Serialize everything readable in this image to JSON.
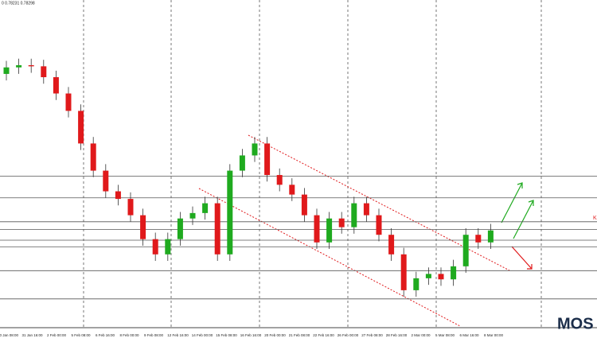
{
  "chart_data": {
    "type": "candlestick",
    "header": "0 0.78231 0.78298",
    "logo": "MOS",
    "right_marker": "K",
    "ylim": [
      0.76,
      0.79
    ],
    "up_color": "#1faa1f",
    "down_color": "#e0191b",
    "open": [
      0.7832,
      0.7838,
      0.784,
      0.7839,
      0.7829,
      0.7814,
      0.7798,
      0.7768,
      0.7743,
      0.7724,
      0.7717,
      0.7702,
      0.768,
      0.7666,
      0.768,
      0.7699,
      0.7704,
      0.7713,
      0.7666,
      0.7743,
      0.7757,
      0.7768,
      0.7739,
      0.773,
      0.7721,
      0.7702,
      0.7677,
      0.7699,
      0.7691,
      0.7713,
      0.7702,
      0.7684,
      0.7666,
      0.7633,
      0.7644,
      0.7648,
      0.7643,
      0.7655,
      0.7684,
      0.7677
    ],
    "high": [
      0.7844,
      0.7846,
      0.7846,
      0.7845,
      0.7835,
      0.782,
      0.7804,
      0.7774,
      0.7749,
      0.773,
      0.7723,
      0.7708,
      0.7686,
      0.7686,
      0.7705,
      0.771,
      0.7719,
      0.7719,
      0.7749,
      0.7763,
      0.7774,
      0.7774,
      0.7745,
      0.7736,
      0.7727,
      0.7708,
      0.7705,
      0.7705,
      0.7719,
      0.7719,
      0.7708,
      0.769,
      0.7672,
      0.765,
      0.7654,
      0.7654,
      0.7661,
      0.769,
      0.769,
      0.7694
    ],
    "low": [
      0.7826,
      0.7832,
      0.7833,
      0.7823,
      0.7808,
      0.7792,
      0.7762,
      0.7737,
      0.7718,
      0.7711,
      0.7696,
      0.7674,
      0.766,
      0.766,
      0.7674,
      0.7693,
      0.7698,
      0.766,
      0.766,
      0.7737,
      0.7751,
      0.7733,
      0.7724,
      0.7715,
      0.7696,
      0.7671,
      0.7671,
      0.7685,
      0.7685,
      0.7696,
      0.7678,
      0.766,
      0.7627,
      0.7627,
      0.7638,
      0.7637,
      0.7637,
      0.7649,
      0.7671,
      0.7671
    ],
    "close": [
      0.7838,
      0.784,
      0.7839,
      0.7829,
      0.7814,
      0.7798,
      0.7768,
      0.7743,
      0.7724,
      0.7717,
      0.7702,
      0.768,
      0.7666,
      0.768,
      0.7699,
      0.7704,
      0.7713,
      0.7666,
      0.7743,
      0.7757,
      0.7768,
      0.7739,
      0.773,
      0.7721,
      0.7702,
      0.7677,
      0.7699,
      0.7691,
      0.7713,
      0.7702,
      0.7684,
      0.7666,
      0.7633,
      0.7644,
      0.7648,
      0.7643,
      0.7655,
      0.7684,
      0.7677,
      0.7688
    ],
    "levels": [
      0.7738,
      0.7718,
      0.7696,
      0.7689,
      0.7679,
      0.7673,
      0.7651,
      0.7625
    ],
    "xlabels": [
      "30 Jan 08:00",
      "31 Jan 16:00",
      "2 Feb 00:00",
      "5 Feb 08:00",
      "6 Feb 16:00",
      "8 Feb 00:00",
      "9 Feb 08:00",
      "12 Feb 16:00",
      "14 Feb 00:00",
      "15 Feb 08:00",
      "16 Feb 16:00",
      "20 Feb 00:00",
      "21 Feb 08:00",
      "22 Feb 16:00",
      "26 Feb 00:00",
      "27 Feb 08:00",
      "28 Feb 16:00",
      "2 Mar 00:00",
      "5 Mar 08:00",
      "6 Mar 16:00",
      "8 Mar 00:00"
    ]
  }
}
